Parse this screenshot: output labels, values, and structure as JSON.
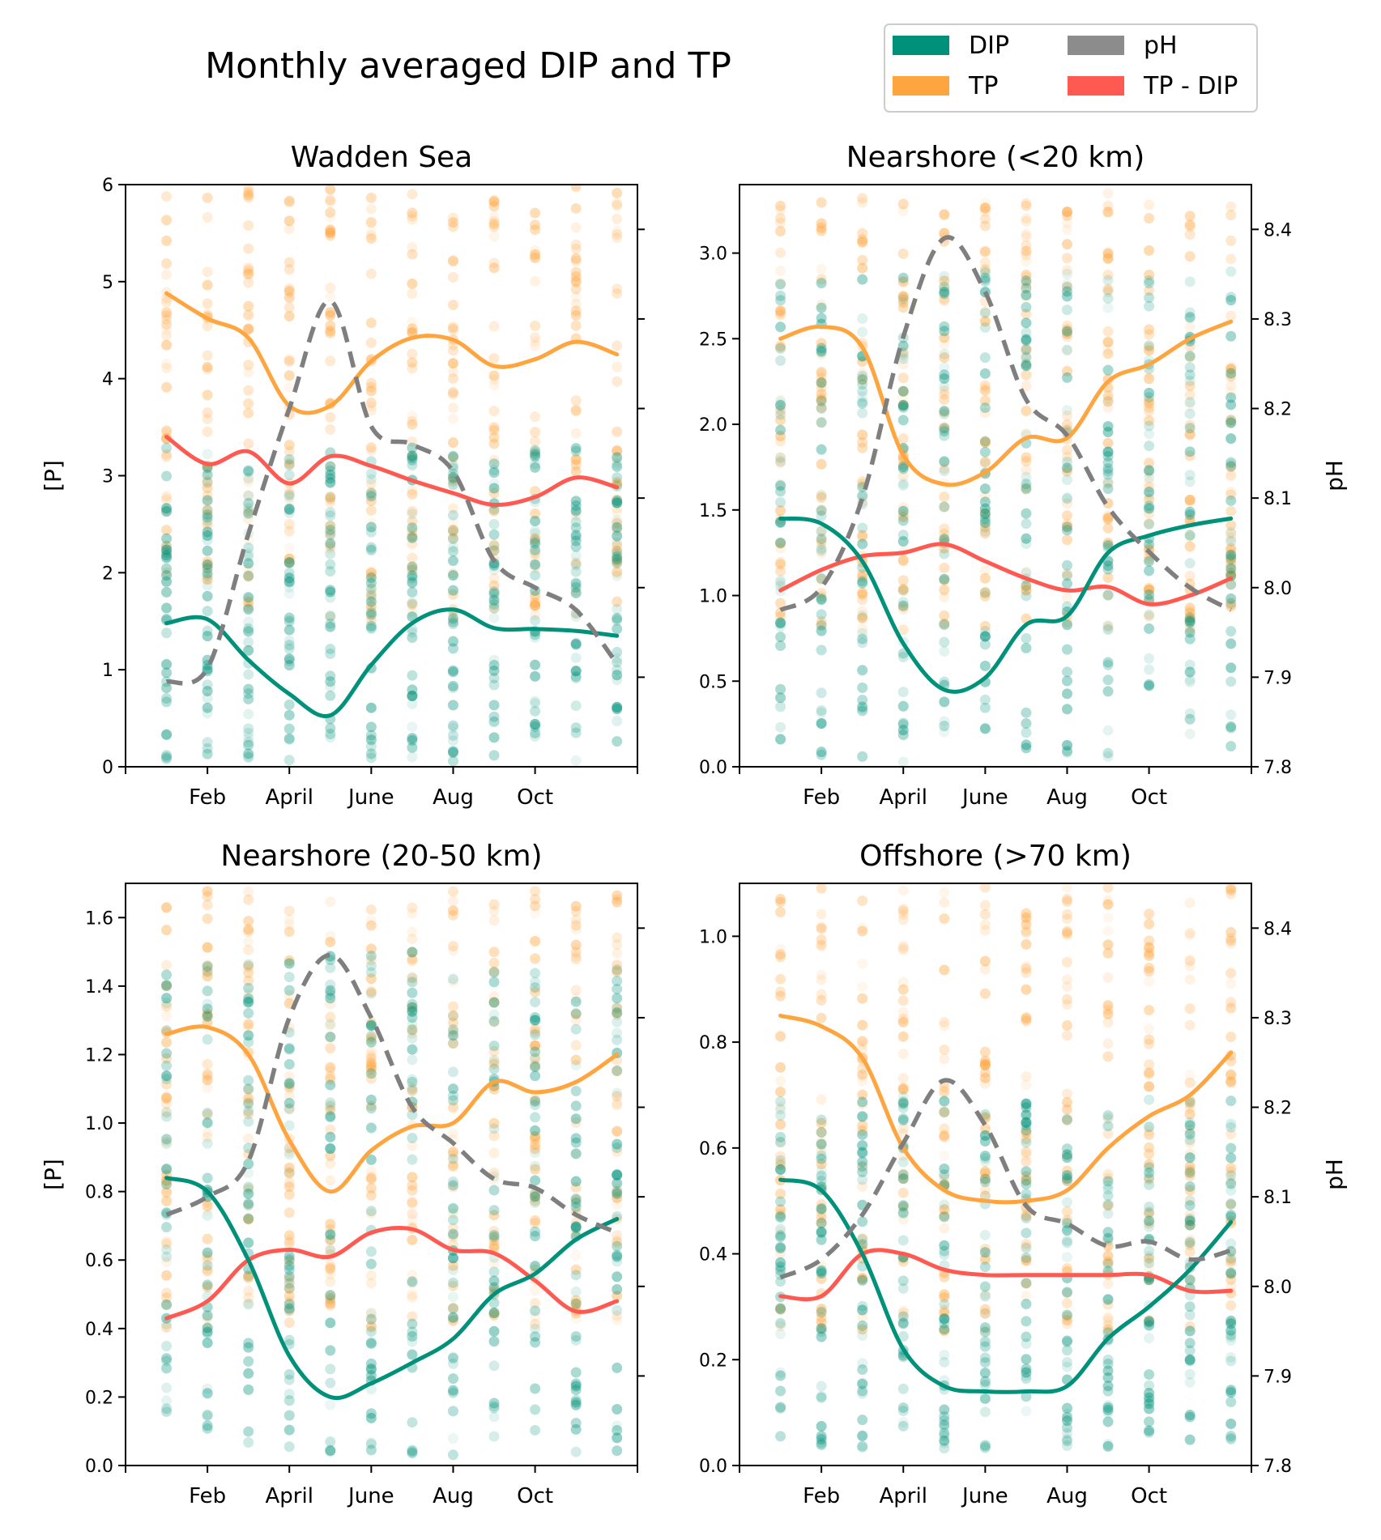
{
  "figure": {
    "title": "Monthly averaged DIP and TP"
  },
  "legend": {
    "placement": "top-right",
    "items": [
      {
        "label": "DIP",
        "color": "#00917a"
      },
      {
        "label": "pH",
        "color": "#8c8c8c"
      },
      {
        "label": "TP",
        "color": "#ffa53f"
      },
      {
        "label": "TP - DIP",
        "color": "#ff5a52"
      }
    ]
  },
  "colors": {
    "dip": "#00917a",
    "tp": "#ffa53f",
    "ph": "#7f7f7f",
    "diff": "#ff5a52"
  },
  "chart_data": [
    {
      "type": "line",
      "title": "Wadden Sea",
      "ylabel": "[P]",
      "y2label": "",
      "ylim": [
        0,
        6
      ],
      "yticks": [
        0,
        1,
        2,
        3,
        4,
        5,
        6
      ],
      "y2lim": [
        7.8,
        8.45
      ],
      "y2ticks": [
        7.9,
        8.0,
        8.1,
        8.2,
        8.3,
        8.4
      ],
      "y2ticklabels": false,
      "xlim": [
        0,
        12.5
      ],
      "xticks": [
        2,
        4,
        6,
        8,
        10
      ],
      "xticklabels": [
        "Feb",
        "April",
        "June",
        "Aug",
        "Oct"
      ],
      "scatter_ranges": {
        "dip": [
          0.05,
          3.3
        ],
        "tp": [
          1.5,
          6.0
        ]
      },
      "series": [
        {
          "name": "DIP",
          "key": "dip",
          "axis": "left",
          "x": [
            1,
            2,
            3,
            4,
            5,
            6,
            7,
            8,
            9,
            10,
            11,
            12
          ],
          "values": [
            1.48,
            1.52,
            1.1,
            0.75,
            0.53,
            1.05,
            1.48,
            1.62,
            1.43,
            1.42,
            1.4,
            1.35
          ]
        },
        {
          "name": "TP",
          "key": "tp",
          "axis": "left",
          "x": [
            1,
            2,
            3,
            4,
            5,
            6,
            7,
            8,
            9,
            10,
            11,
            12
          ],
          "values": [
            4.88,
            4.62,
            4.42,
            3.72,
            3.72,
            4.18,
            4.42,
            4.4,
            4.13,
            4.2,
            4.38,
            4.25
          ]
        },
        {
          "name": "TP - DIP",
          "key": "diff",
          "axis": "left",
          "x": [
            1,
            2,
            3,
            4,
            5,
            6,
            7,
            8,
            9,
            10,
            11,
            12
          ],
          "values": [
            3.4,
            3.12,
            3.25,
            2.92,
            3.2,
            3.1,
            2.95,
            2.82,
            2.7,
            2.78,
            2.98,
            2.88
          ]
        },
        {
          "name": "pH",
          "key": "ph",
          "axis": "right",
          "dashed": true,
          "x": [
            1,
            2,
            3,
            4,
            5,
            6,
            7,
            8,
            9,
            10,
            11,
            12
          ],
          "values": [
            7.895,
            7.91,
            8.06,
            8.2,
            8.32,
            8.18,
            8.16,
            8.13,
            8.03,
            8.0,
            7.975,
            7.915
          ]
        }
      ]
    },
    {
      "type": "line",
      "title": "Nearshore (<20 km)",
      "ylabel": "",
      "y2label": "pH",
      "ylim": [
        0,
        3.4
      ],
      "yticks": [
        0.0,
        0.5,
        1.0,
        1.5,
        2.0,
        2.5,
        3.0
      ],
      "y2lim": [
        7.8,
        8.45
      ],
      "y2ticks": [
        7.8,
        7.9,
        8.0,
        8.1,
        8.2,
        8.3,
        8.4
      ],
      "y2ticklabels": true,
      "xlim": [
        0,
        12.5
      ],
      "xticks": [
        2,
        4,
        6,
        8,
        10
      ],
      "xticklabels": [
        "Feb",
        "April",
        "June",
        "Aug",
        "Oct"
      ],
      "scatter_ranges": {
        "dip": [
          0.02,
          2.9
        ],
        "tp": [
          0.8,
          3.35
        ]
      },
      "series": [
        {
          "name": "DIP",
          "key": "dip",
          "axis": "left",
          "x": [
            1,
            2,
            3,
            4,
            5,
            6,
            7,
            8,
            9,
            10,
            11,
            12
          ],
          "values": [
            1.45,
            1.42,
            1.2,
            0.72,
            0.45,
            0.52,
            0.83,
            0.88,
            1.25,
            1.35,
            1.41,
            1.45
          ]
        },
        {
          "name": "TP",
          "key": "tp",
          "axis": "left",
          "x": [
            1,
            2,
            3,
            4,
            5,
            6,
            7,
            8,
            9,
            10,
            11,
            12
          ],
          "values": [
            2.5,
            2.57,
            2.45,
            1.82,
            1.65,
            1.72,
            1.92,
            1.92,
            2.25,
            2.35,
            2.5,
            2.6
          ]
        },
        {
          "name": "TP - DIP",
          "key": "diff",
          "axis": "left",
          "x": [
            1,
            2,
            3,
            4,
            5,
            6,
            7,
            8,
            9,
            10,
            11,
            12
          ],
          "values": [
            1.03,
            1.15,
            1.23,
            1.25,
            1.3,
            1.2,
            1.1,
            1.03,
            1.05,
            0.95,
            1.0,
            1.1
          ]
        },
        {
          "name": "pH",
          "key": "ph",
          "axis": "right",
          "dashed": true,
          "x": [
            1,
            2,
            3,
            4,
            5,
            6,
            7,
            8,
            9,
            10,
            11,
            12
          ],
          "values": [
            7.975,
            8.0,
            8.1,
            8.28,
            8.39,
            8.33,
            8.21,
            8.17,
            8.09,
            8.04,
            8.0,
            7.975
          ]
        }
      ]
    },
    {
      "type": "line",
      "title": "Nearshore (20-50 km)",
      "ylabel": "[P]",
      "y2label": "",
      "ylim": [
        0,
        1.7
      ],
      "yticks": [
        0.0,
        0.2,
        0.4,
        0.6,
        0.8,
        1.0,
        1.2,
        1.4,
        1.6
      ],
      "y2lim": [
        7.8,
        8.45
      ],
      "y2ticks": [
        7.9,
        8.0,
        8.1,
        8.2,
        8.3,
        8.4
      ],
      "y2ticklabels": false,
      "xlim": [
        0,
        12.5
      ],
      "xticks": [
        2,
        4,
        6,
        8,
        10
      ],
      "xticklabels": [
        "Feb",
        "April",
        "June",
        "Aug",
        "Oct"
      ],
      "scatter_ranges": {
        "dip": [
          0.03,
          1.5
        ],
        "tp": [
          0.4,
          1.68
        ]
      },
      "series": [
        {
          "name": "DIP",
          "key": "dip",
          "axis": "left",
          "x": [
            1,
            2,
            3,
            4,
            5,
            6,
            7,
            8,
            9,
            10,
            11,
            12
          ],
          "values": [
            0.84,
            0.8,
            0.6,
            0.32,
            0.2,
            0.24,
            0.3,
            0.37,
            0.5,
            0.56,
            0.66,
            0.72
          ]
        },
        {
          "name": "TP",
          "key": "tp",
          "axis": "left",
          "x": [
            1,
            2,
            3,
            4,
            5,
            6,
            7,
            8,
            9,
            10,
            11,
            12
          ],
          "values": [
            1.26,
            1.28,
            1.2,
            0.95,
            0.8,
            0.92,
            0.99,
            1.0,
            1.12,
            1.09,
            1.12,
            1.2
          ]
        },
        {
          "name": "TP - DIP",
          "key": "diff",
          "axis": "left",
          "x": [
            1,
            2,
            3,
            4,
            5,
            6,
            7,
            8,
            9,
            10,
            11,
            12
          ],
          "values": [
            0.43,
            0.48,
            0.6,
            0.63,
            0.61,
            0.68,
            0.69,
            0.63,
            0.62,
            0.54,
            0.45,
            0.48
          ]
        },
        {
          "name": "pH",
          "key": "ph",
          "axis": "right",
          "dashed": true,
          "x": [
            1,
            2,
            3,
            4,
            5,
            6,
            7,
            8,
            9,
            10,
            11,
            12
          ],
          "values": [
            8.08,
            8.1,
            8.14,
            8.3,
            8.37,
            8.3,
            8.2,
            8.16,
            8.12,
            8.11,
            8.08,
            8.06
          ]
        }
      ]
    },
    {
      "type": "line",
      "title": "Offshore (>70 km)",
      "ylabel": "",
      "y2label": "pH",
      "ylim": [
        0,
        1.1
      ],
      "yticks": [
        0.0,
        0.2,
        0.4,
        0.6,
        0.8,
        1.0
      ],
      "y2lim": [
        7.8,
        8.45
      ],
      "y2ticks": [
        7.8,
        7.9,
        8.0,
        8.1,
        8.2,
        8.3,
        8.4
      ],
      "y2ticklabels": true,
      "xlim": [
        0,
        12.5
      ],
      "xticks": [
        2,
        4,
        6,
        8,
        10
      ],
      "xticklabels": [
        "Feb",
        "April",
        "June",
        "Aug",
        "Oct"
      ],
      "scatter_ranges": {
        "dip": [
          0.03,
          0.7
        ],
        "tp": [
          0.25,
          1.1
        ]
      },
      "series": [
        {
          "name": "DIP",
          "key": "dip",
          "axis": "left",
          "x": [
            1,
            2,
            3,
            4,
            5,
            6,
            7,
            8,
            9,
            10,
            11,
            12
          ],
          "values": [
            0.54,
            0.52,
            0.4,
            0.22,
            0.15,
            0.14,
            0.14,
            0.15,
            0.24,
            0.3,
            0.37,
            0.46
          ]
        },
        {
          "name": "TP",
          "key": "tp",
          "axis": "left",
          "x": [
            1,
            2,
            3,
            4,
            5,
            6,
            7,
            8,
            9,
            10,
            11,
            12
          ],
          "values": [
            0.85,
            0.83,
            0.77,
            0.6,
            0.52,
            0.5,
            0.5,
            0.52,
            0.6,
            0.66,
            0.7,
            0.78
          ]
        },
        {
          "name": "TP - DIP",
          "key": "diff",
          "axis": "left",
          "x": [
            1,
            2,
            3,
            4,
            5,
            6,
            7,
            8,
            9,
            10,
            11,
            12
          ],
          "values": [
            0.32,
            0.32,
            0.4,
            0.4,
            0.37,
            0.36,
            0.36,
            0.36,
            0.36,
            0.36,
            0.33,
            0.33
          ]
        },
        {
          "name": "pH",
          "key": "ph",
          "axis": "right",
          "dashed": true,
          "x": [
            1,
            2,
            3,
            4,
            5,
            6,
            7,
            8,
            9,
            10,
            11,
            12
          ],
          "values": [
            8.01,
            8.03,
            8.08,
            8.16,
            8.23,
            8.18,
            8.09,
            8.07,
            8.045,
            8.05,
            8.03,
            8.04
          ]
        }
      ]
    }
  ]
}
